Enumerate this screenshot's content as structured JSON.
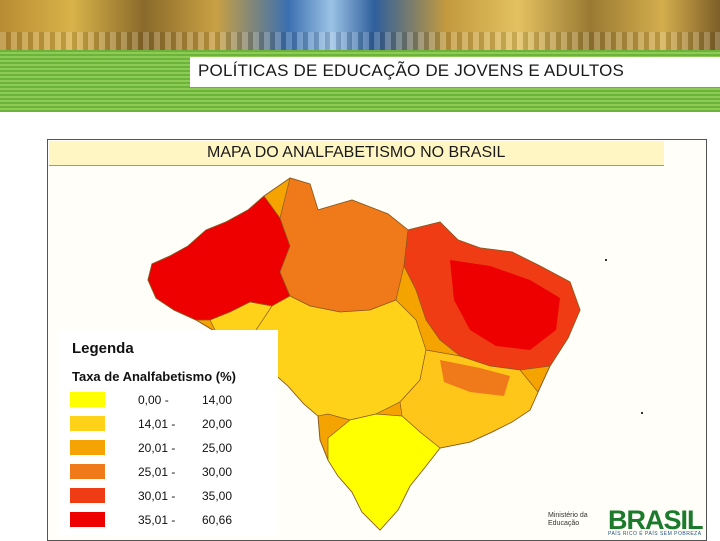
{
  "header": {
    "title": "POLÍTICAS DE EDUCAÇÃO DE JOVENS E  ADULTOS"
  },
  "map": {
    "title": "MAPA DO ANALFABETISMO NO BRASIL",
    "legend": {
      "title": "Legenda",
      "subtitle": "Taxa de Analfabetismo (%)",
      "classes": [
        {
          "low": "0,00 -",
          "high": "14,00",
          "color": "#ffff00"
        },
        {
          "low": "14,01 -",
          "high": "20,00",
          "color": "#ffd21a"
        },
        {
          "low": "20,01 -",
          "high": "25,00",
          "color": "#f5a300"
        },
        {
          "low": "25,01 -",
          "high": "30,00",
          "color": "#f07a1a"
        },
        {
          "low": "30,01 -",
          "high": "35,00",
          "color": "#f03c14"
        },
        {
          "low": "35,01 -",
          "high": "60,66",
          "color": "#ee0000"
        }
      ]
    }
  },
  "footer": {
    "ministry": "Ministério da Educação",
    "brand": "BRASIL",
    "tagline": "PAÍS RICO É PAÍS SEM POBREZA"
  }
}
